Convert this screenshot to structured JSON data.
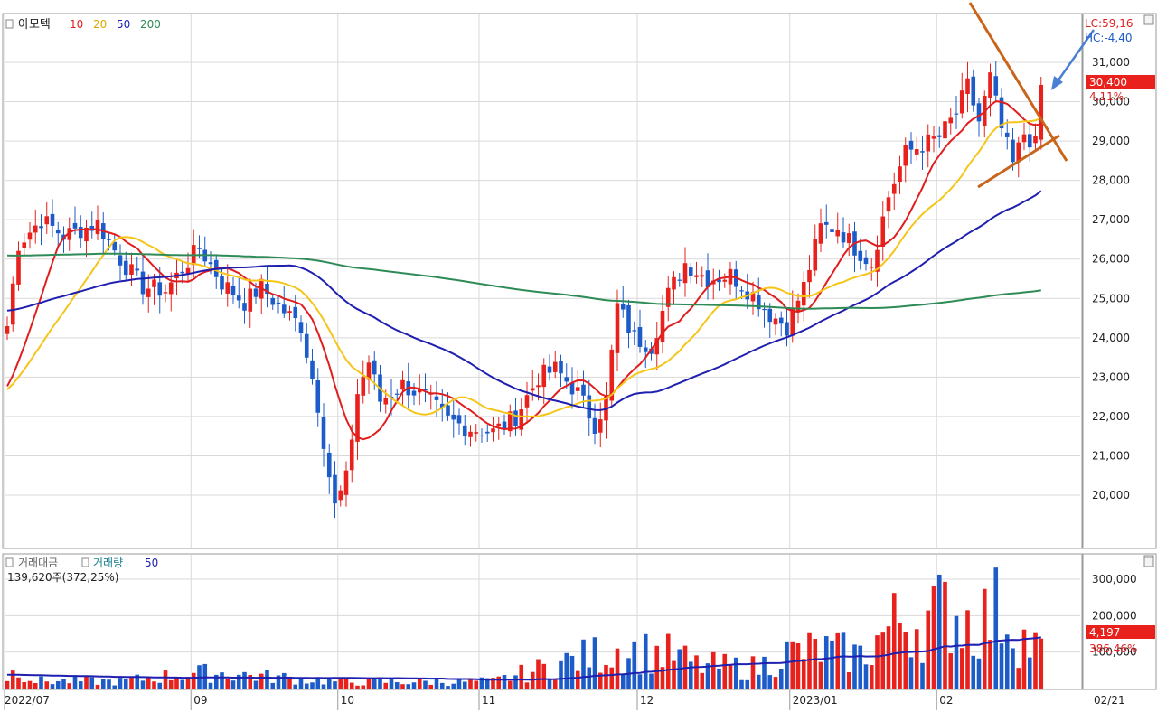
{
  "price_pane": {
    "stock_name": "아모텍",
    "ma_labels": [
      "10",
      "20",
      "50",
      "200"
    ],
    "lc_label": "LC:59,16",
    "hc_label": "HC:-4,40",
    "current_price": "30,400",
    "change_pct": "4,11%"
  },
  "volume_pane": {
    "legend_1": "거래대금",
    "legend_2": "거래량",
    "legend_3": "50",
    "info": "139,620주(372,25%)",
    "current_value": "4,197",
    "current_pct": "386,46%"
  },
  "x_axis": {
    "labels": [
      "2022/07",
      "09",
      "10",
      "11",
      "12",
      "2023/01",
      "02"
    ],
    "end_label": "02/21"
  },
  "colors": {
    "up": "#e8211d",
    "down": "#1c5bc8",
    "ma10": "#e01e1e",
    "ma20": "#f5c518",
    "ma50": "#1f1fb0",
    "ma200": "#2e8b57",
    "trendline": "#c8651b",
    "arrow": "#4a7fd4"
  },
  "chart_data": [
    {
      "type": "candlestick",
      "title": "아모텍",
      "y_ticks": [
        20000,
        21000,
        22000,
        23000,
        24000,
        25000,
        26000,
        27000,
        28000,
        29000,
        30000,
        31000
      ],
      "y_tick_labels": [
        "20,000",
        "21,000",
        "22,000",
        "23,000",
        "24,000",
        "25,000",
        "26,000",
        "27,000",
        "28,000",
        "29,000",
        "30,000",
        "31,000"
      ],
      "ylim": [
        19100,
        31800
      ],
      "x_labels": [
        "2022/07",
        "09",
        "10",
        "11",
        "12",
        "2023/01",
        "02"
      ],
      "close_anchors": [
        [
          0,
          24300
        ],
        [
          2,
          26400
        ],
        [
          6,
          27000
        ],
        [
          10,
          26600
        ],
        [
          16,
          26900
        ],
        [
          20,
          26000
        ],
        [
          24,
          25300
        ],
        [
          28,
          25200
        ],
        [
          34,
          26300
        ],
        [
          38,
          25400
        ],
        [
          42,
          24900
        ],
        [
          45,
          25300
        ],
        [
          48,
          24800
        ],
        [
          52,
          24300
        ],
        [
          55,
          22300
        ],
        [
          57,
          20500
        ],
        [
          58,
          19700
        ],
        [
          60,
          20400
        ],
        [
          62,
          22600
        ],
        [
          64,
          23400
        ],
        [
          66,
          22400
        ],
        [
          70,
          22800
        ],
        [
          74,
          22500
        ],
        [
          78,
          21900
        ],
        [
          82,
          21700
        ],
        [
          86,
          21600
        ],
        [
          90,
          22000
        ],
        [
          94,
          23000
        ],
        [
          97,
          23200
        ],
        [
          101,
          22600
        ],
        [
          104,
          21800
        ],
        [
          106,
          22400
        ],
        [
          108,
          24800
        ],
        [
          111,
          24000
        ],
        [
          114,
          23800
        ],
        [
          117,
          25100
        ],
        [
          120,
          25900
        ],
        [
          124,
          25500
        ],
        [
          128,
          25600
        ],
        [
          132,
          25100
        ],
        [
          135,
          24600
        ],
        [
          138,
          24300
        ],
        [
          141,
          25300
        ],
        [
          144,
          26800
        ],
        [
          147,
          26800
        ],
        [
          150,
          26300
        ],
        [
          153,
          25900
        ],
        [
          156,
          27600
        ],
        [
          159,
          28700
        ],
        [
          162,
          28900
        ],
        [
          165,
          29100
        ],
        [
          168,
          29700
        ],
        [
          170,
          30400
        ],
        [
          172,
          29500
        ],
        [
          174,
          30600
        ],
        [
          176,
          29300
        ],
        [
          178,
          28400
        ],
        [
          180,
          29200
        ],
        [
          182,
          28900
        ],
        [
          183,
          30400
        ]
      ],
      "moving_average_periods": [
        10,
        20,
        50,
        200
      ],
      "annotations": [
        "LC:59,16",
        "HC:-4,40",
        "30,400",
        "4,11%"
      ]
    },
    {
      "type": "bar",
      "title": "거래대금 / 거래량 50",
      "y_ticks": [
        100000,
        200000,
        300000
      ],
      "y_tick_labels": [
        "100,000",
        "200,000",
        "300,000"
      ],
      "ylim": [
        0,
        330000
      ],
      "volume_anchors": [
        [
          0,
          42000
        ],
        [
          2,
          80000
        ],
        [
          5,
          30000
        ],
        [
          20,
          28000
        ],
        [
          33,
          60000
        ],
        [
          38,
          60000
        ],
        [
          60,
          25000
        ],
        [
          86,
          28000
        ],
        [
          108,
          155000
        ],
        [
          118,
          130000
        ],
        [
          122,
          90000
        ],
        [
          133,
          80000
        ],
        [
          137,
          135000
        ],
        [
          144,
          150000
        ],
        [
          151,
          128000
        ],
        [
          158,
          270000
        ],
        [
          161,
          260000
        ],
        [
          167,
          310000
        ],
        [
          171,
          260000
        ],
        [
          174,
          285000
        ],
        [
          176,
          320000
        ],
        [
          180,
          188000
        ],
        [
          183,
          140000
        ]
      ],
      "annotations": [
        "139,620주(372,25%)",
        "4,197",
        "386,46%"
      ]
    }
  ]
}
